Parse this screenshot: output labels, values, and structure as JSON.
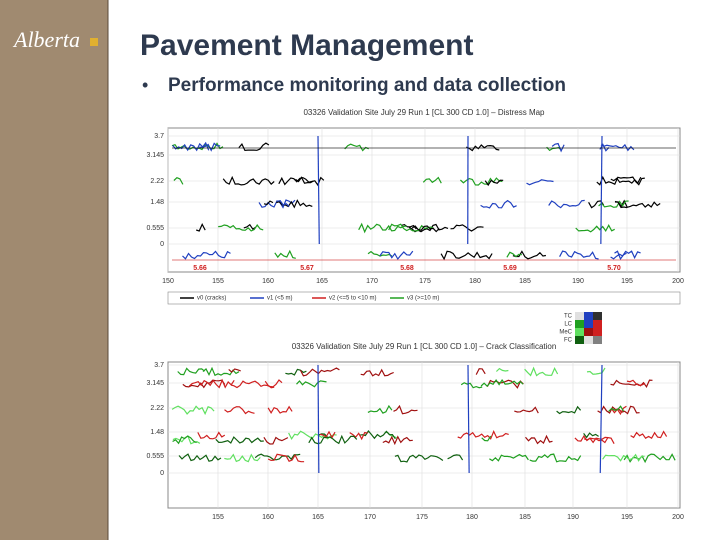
{
  "header": {
    "logo": "Alberta",
    "title": "Pavement Management",
    "bullet": "Performance monitoring and data collection"
  },
  "figures": [
    {
      "title": "03326 Validation Site July 29 Run 1 [CL 300 CD 1.0] – Distress Map",
      "yticks": [
        "3.7",
        "3.145",
        "2.22",
        "1.48",
        "0.555",
        "0"
      ],
      "xticks": [
        "150",
        "155",
        "160",
        "165",
        "170",
        "175",
        "180",
        "185",
        "190",
        "195",
        "200"
      ],
      "markers": [
        "5.66",
        "5.67",
        "5.68",
        "5.69",
        "5.70"
      ],
      "legend": [
        "v0 (cracks)",
        "v1 (<5 m)",
        "v2 (<=5 to <10 m)",
        "v3 (>=10 m)"
      ]
    },
    {
      "title": "03326 Validation Site July 29 Run 1 [CL 300 CD 1.0] – Crack Classification",
      "yticks": [
        "3.7",
        "3.145",
        "2.22",
        "1.48",
        "0.555",
        "0"
      ],
      "xticks": [
        "155",
        "160",
        "165",
        "170",
        "175",
        "180",
        "185",
        "190",
        "195",
        "200"
      ],
      "classes": [
        "TC",
        "LC",
        "MeC",
        "FC"
      ]
    }
  ]
}
